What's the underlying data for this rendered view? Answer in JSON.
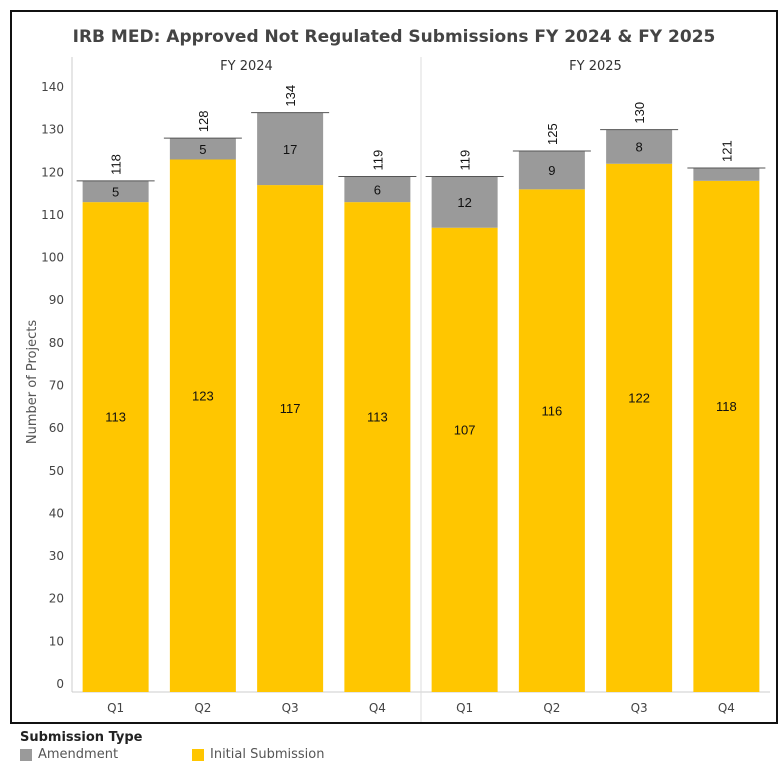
{
  "chart_data": {
    "type": "bar",
    "stacked": true,
    "title": "IRB MED: Approved Not Regulated Submissions  FY 2024 & FY 2025",
    "ylabel": "Number of Projects",
    "ylim": [
      0,
      140
    ],
    "yticks": [
      0,
      10,
      20,
      30,
      40,
      50,
      60,
      70,
      80,
      90,
      100,
      110,
      120,
      130,
      140
    ],
    "groups": [
      "FY 2024",
      "FY 2025"
    ],
    "categories": [
      "Q1",
      "Q2",
      "Q3",
      "Q4",
      "Q1",
      "Q2",
      "Q3",
      "Q4"
    ],
    "series": [
      {
        "name": "Initial Submission",
        "color": "#FFC600",
        "values": [
          113,
          123,
          117,
          113,
          107,
          116,
          122,
          118
        ]
      },
      {
        "name": "Amendment",
        "color": "#9A9A9A",
        "values": [
          5,
          5,
          17,
          6,
          12,
          9,
          8,
          3
        ]
      }
    ],
    "totals": [
      118,
      128,
      134,
      119,
      119,
      125,
      130,
      121
    ],
    "amendment_labels": [
      "5",
      "5",
      "17",
      "6",
      "12",
      "9",
      "8",
      ""
    ],
    "legend_title": "Submission Type",
    "legend_placement": "bottom-left",
    "grid": false
  }
}
